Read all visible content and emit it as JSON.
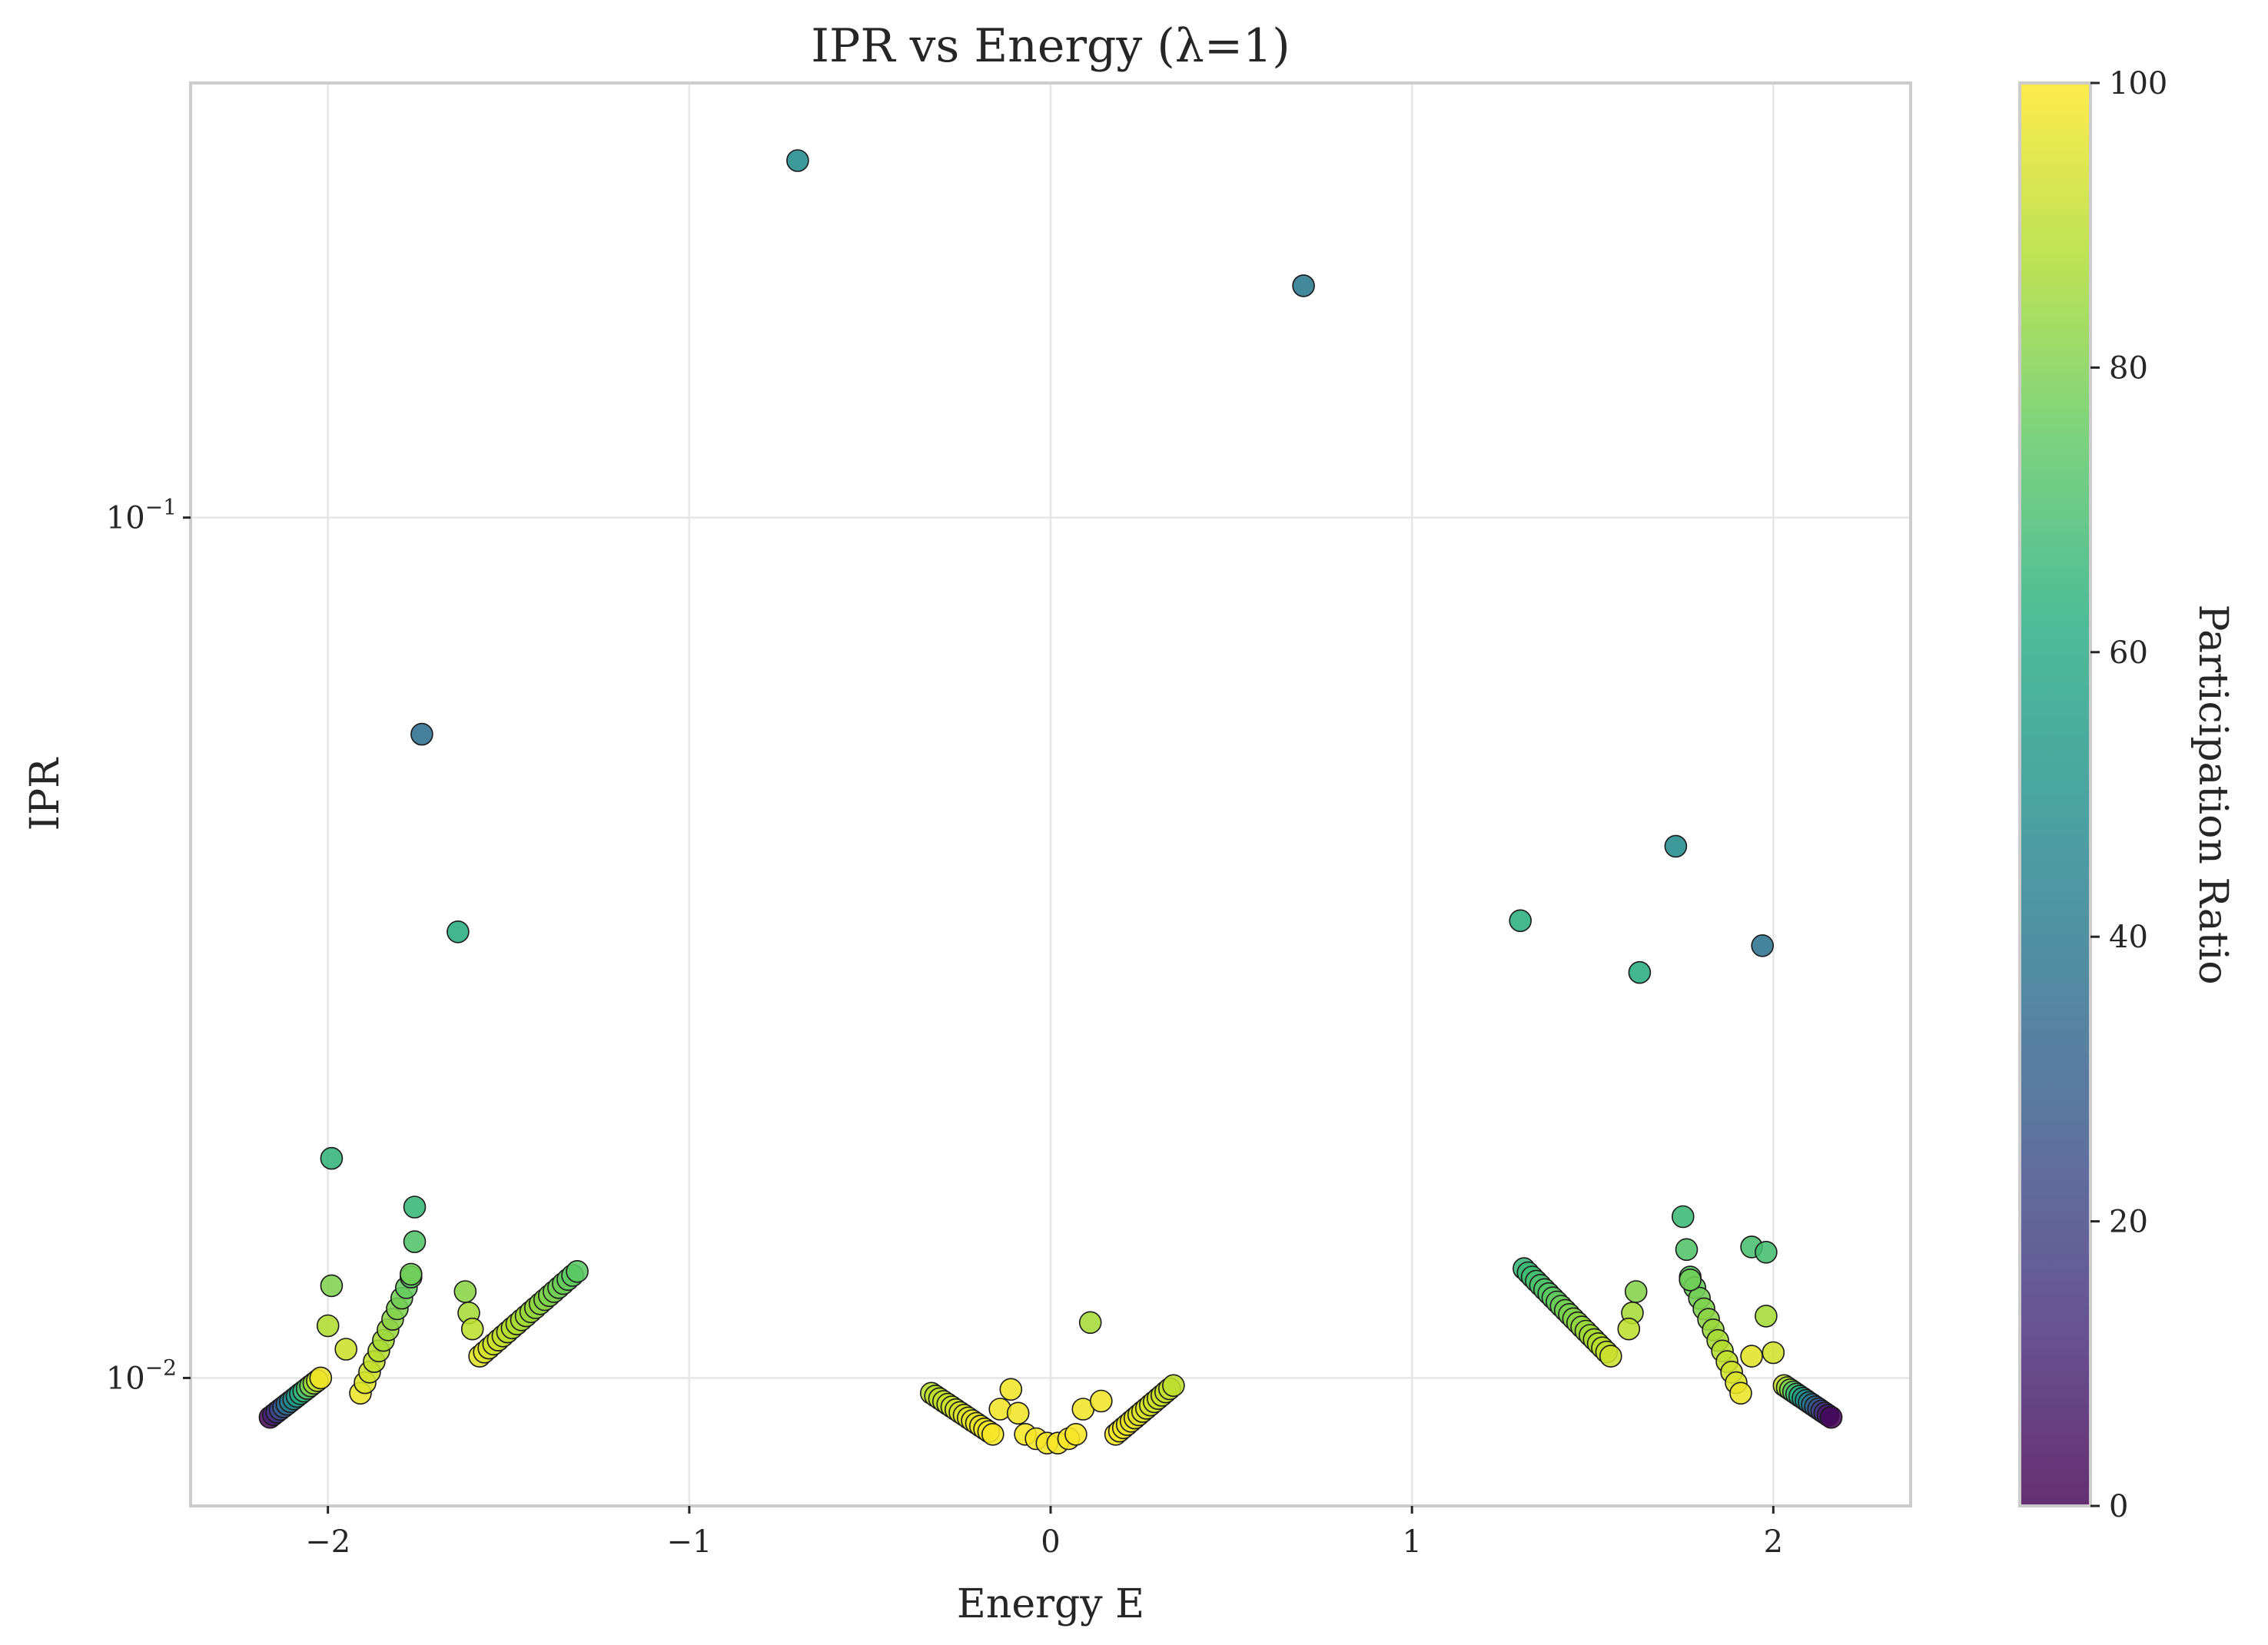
{
  "chart_data": {
    "type": "scatter",
    "title": "IPR vs Energy (λ=1)",
    "xlabel": "Energy E",
    "ylabel": "IPR",
    "xlim": [
      -2.38,
      2.38
    ],
    "ylim": [
      0.0071,
      0.32
    ],
    "yscale": "log",
    "grid": true,
    "x_ticks": [
      {
        "value": -2,
        "label": "−2"
      },
      {
        "value": -1,
        "label": "−1"
      },
      {
        "value": 0,
        "label": "0"
      },
      {
        "value": 1,
        "label": "1"
      },
      {
        "value": 2,
        "label": "2"
      }
    ],
    "y_ticks": [
      {
        "value": 0.01,
        "base": "10",
        "exp": "−2"
      },
      {
        "value": 0.1,
        "base": "10",
        "exp": "−1"
      }
    ],
    "colorbar": {
      "label": "Participation Ratio",
      "range": [
        0,
        100
      ],
      "colormap": "viridis",
      "ticks": [
        "0",
        "20",
        "40",
        "60",
        "80",
        "100"
      ]
    },
    "groups": [
      {
        "x_start": -2.16,
        "x_end": -2.02,
        "y_start": 0.009,
        "y_end": 0.01,
        "n": 16,
        "pr_start": 3,
        "pr_end": 98
      },
      {
        "x_start": -1.91,
        "x_end": -1.77,
        "y_start": 0.0096,
        "y_end": 0.0131,
        "n": 12,
        "pr_start": 97,
        "pr_end": 74
      },
      {
        "x_start": -1.58,
        "x_end": -1.31,
        "y_start": 0.0106,
        "y_end": 0.0133,
        "n": 22,
        "pr_start": 96,
        "pr_end": 74
      },
      {
        "x_start": -0.33,
        "x_end": -0.16,
        "y_start": 0.0096,
        "y_end": 0.0086,
        "n": 16,
        "pr_start": 89,
        "pr_end": 99
      },
      {
        "x_start": 0.18,
        "x_end": 0.34,
        "y_start": 0.0086,
        "y_end": 0.0098,
        "n": 16,
        "pr_start": 99,
        "pr_end": 90
      },
      {
        "x_start": 1.31,
        "x_end": 1.55,
        "y_start": 0.0134,
        "y_end": 0.0106,
        "n": 22,
        "pr_start": 66,
        "pr_end": 92
      },
      {
        "x_start": 1.77,
        "x_end": 1.91,
        "y_start": 0.0131,
        "y_end": 0.0096,
        "n": 12,
        "pr_start": 74,
        "pr_end": 97
      },
      {
        "x_start": 2.03,
        "x_end": 2.16,
        "y_start": 0.0098,
        "y_end": 0.009,
        "n": 16,
        "pr_start": 92,
        "pr_end": 2
      }
    ],
    "points": [
      {
        "x": -0.7,
        "y": 0.26,
        "pr": 48
      },
      {
        "x": 0.7,
        "y": 0.186,
        "pr": 40
      },
      {
        "x": -1.74,
        "y": 0.056,
        "pr": 36
      },
      {
        "x": -1.64,
        "y": 0.033,
        "pr": 62
      },
      {
        "x": 1.73,
        "y": 0.0415,
        "pr": 48
      },
      {
        "x": 1.3,
        "y": 0.034,
        "pr": 63
      },
      {
        "x": 1.63,
        "y": 0.0296,
        "pr": 62
      },
      {
        "x": 1.97,
        "y": 0.0318,
        "pr": 38
      },
      {
        "x": -1.99,
        "y": 0.018,
        "pr": 65
      },
      {
        "x": -1.76,
        "y": 0.0158,
        "pr": 66
      },
      {
        "x": -1.76,
        "y": 0.0144,
        "pr": 72
      },
      {
        "x": -1.77,
        "y": 0.0132,
        "pr": 78
      },
      {
        "x": -1.99,
        "y": 0.0128,
        "pr": 80
      },
      {
        "x": -2.0,
        "y": 0.0115,
        "pr": 88
      },
      {
        "x": -1.95,
        "y": 0.0108,
        "pr": 92
      },
      {
        "x": -1.62,
        "y": 0.0126,
        "pr": 82
      },
      {
        "x": -1.61,
        "y": 0.0119,
        "pr": 86
      },
      {
        "x": -1.6,
        "y": 0.0114,
        "pr": 90
      },
      {
        "x": 1.75,
        "y": 0.0154,
        "pr": 67
      },
      {
        "x": 1.76,
        "y": 0.0141,
        "pr": 72
      },
      {
        "x": 1.77,
        "y": 0.013,
        "pr": 78
      },
      {
        "x": 1.94,
        "y": 0.0142,
        "pr": 70
      },
      {
        "x": 1.98,
        "y": 0.014,
        "pr": 69
      },
      {
        "x": 1.98,
        "y": 0.0118,
        "pr": 86
      },
      {
        "x": 2.0,
        "y": 0.0107,
        "pr": 93
      },
      {
        "x": 1.94,
        "y": 0.0106,
        "pr": 96
      },
      {
        "x": 1.62,
        "y": 0.0126,
        "pr": 81
      },
      {
        "x": 1.61,
        "y": 0.0119,
        "pr": 86
      },
      {
        "x": 1.6,
        "y": 0.0114,
        "pr": 90
      },
      {
        "x": 0.11,
        "y": 0.0116,
        "pr": 86
      },
      {
        "x": -0.11,
        "y": 0.0097,
        "pr": 98
      },
      {
        "x": -0.14,
        "y": 0.0092,
        "pr": 98
      },
      {
        "x": -0.09,
        "y": 0.0091,
        "pr": 98
      },
      {
        "x": 0.09,
        "y": 0.0092,
        "pr": 98
      },
      {
        "x": 0.14,
        "y": 0.0094,
        "pr": 98
      },
      {
        "x": -0.07,
        "y": 0.0086,
        "pr": 99
      },
      {
        "x": -0.04,
        "y": 0.0085,
        "pr": 99
      },
      {
        "x": -0.01,
        "y": 0.0084,
        "pr": 99
      },
      {
        "x": 0.02,
        "y": 0.0084,
        "pr": 99
      },
      {
        "x": 0.05,
        "y": 0.0085,
        "pr": 99
      },
      {
        "x": 0.07,
        "y": 0.0086,
        "pr": 99
      }
    ]
  }
}
